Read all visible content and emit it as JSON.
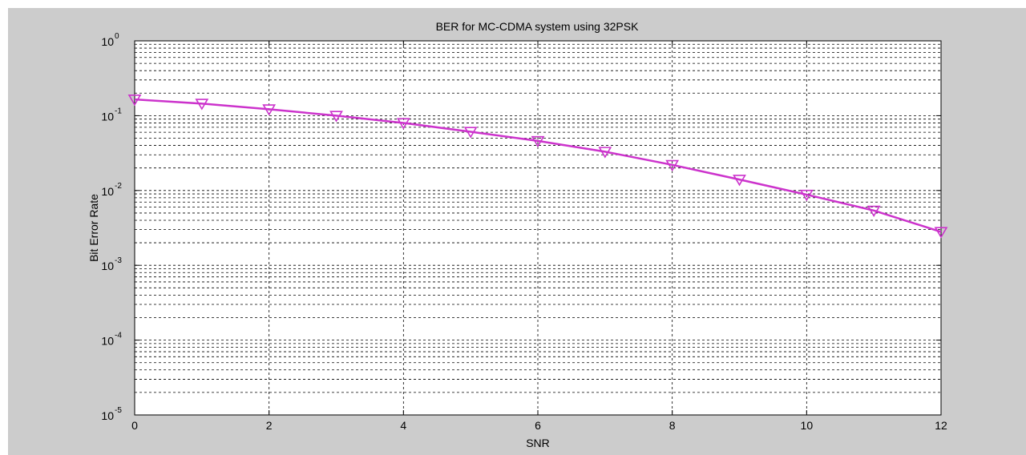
{
  "chart_data": {
    "type": "line",
    "title": "BER for MC-CDMA system using 32PSK",
    "xlabel": "SNR",
    "ylabel": "Bit Error Rate",
    "xlim": [
      0,
      12
    ],
    "ylim": [
      1e-05,
      1
    ],
    "yscale": "log",
    "grid": true,
    "x_ticks": [
      "0",
      "2",
      "4",
      "6",
      "8",
      "10",
      "12"
    ],
    "y_tick_exponents": [
      "-5",
      "-4",
      "-3",
      "-2",
      "-1",
      "0"
    ],
    "series": [
      {
        "color": "#cc33cc",
        "marker": "triangle-down",
        "x": [
          0,
          1,
          2,
          3,
          4,
          5,
          6,
          7,
          8,
          9,
          10,
          11,
          12
        ],
        "y": [
          0.165,
          0.145,
          0.122,
          0.1,
          0.08,
          0.061,
          0.046,
          0.033,
          0.022,
          0.014,
          0.0088,
          0.0054,
          0.0028
        ]
      }
    ]
  }
}
